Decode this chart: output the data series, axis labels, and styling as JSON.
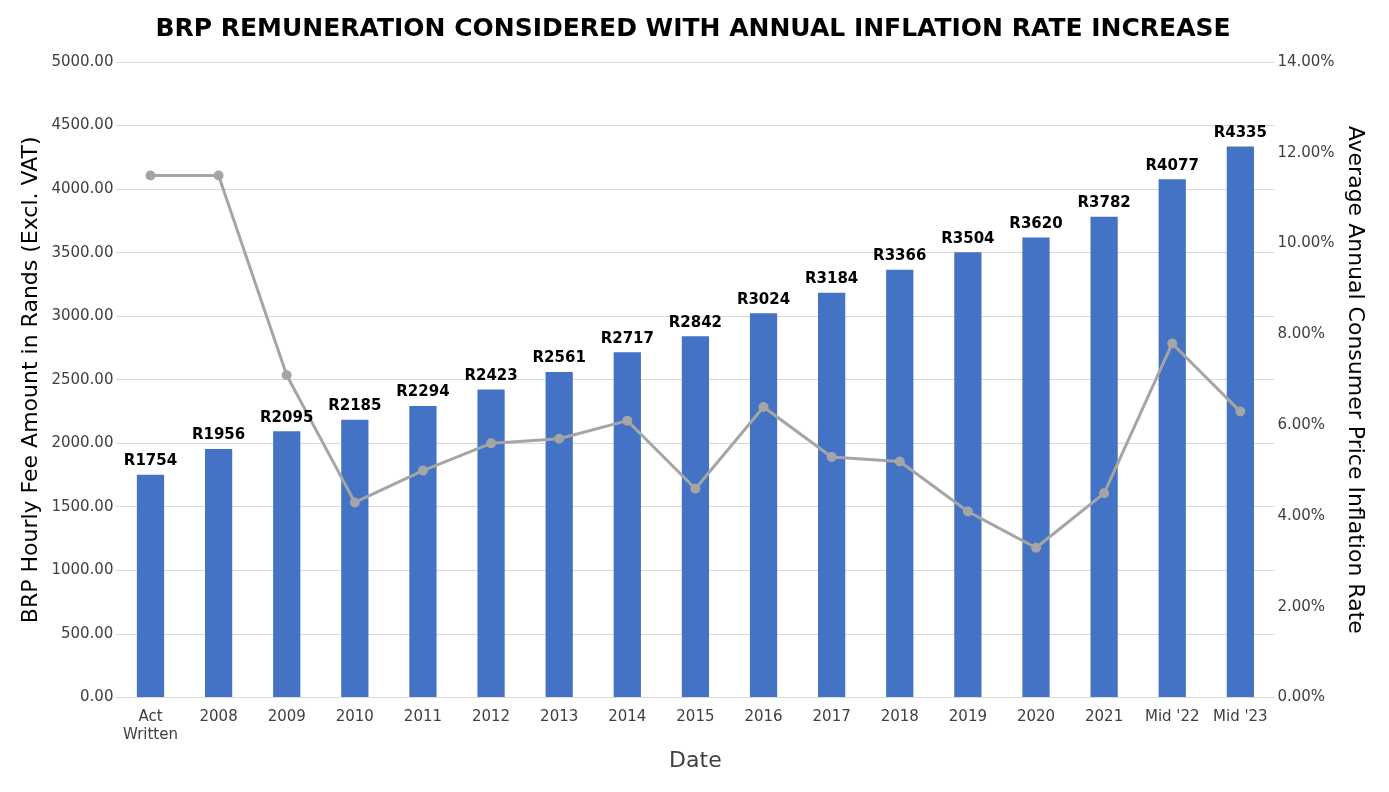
{
  "chart_data": {
    "type": "bar",
    "title": "BRP REMUNERATION CONSIDERED WITH ANNUAL INFLATION RATE INCREASE",
    "xlabel": "Date",
    "ylabel": "BRP Hourly Fee Amount in Rands (Excl. VAT)",
    "y2label": "Average Annual Consumer Price Inflation Rate",
    "categories": [
      "Act Written",
      "2008",
      "2009",
      "2010",
      "2011",
      "2012",
      "2013",
      "2014",
      "2015",
      "2016",
      "2017",
      "2018",
      "2019",
      "2020",
      "2021",
      "Mid '22",
      "Mid '23"
    ],
    "series": [
      {
        "color": "#4472c4",
        "values": [
          1754,
          1956,
          2095,
          2185,
          2294,
          2423,
          2561,
          2717,
          2842,
          3024,
          3184,
          3366,
          3504,
          3620,
          3782,
          4077,
          4335
        ],
        "value_labels": [
          "R1754",
          "R1956",
          "R2095",
          "R2185",
          "R2294",
          "R2423",
          "R2561",
          "R2717",
          "R2842",
          "R3024",
          "R3184",
          "R3366",
          "R3504",
          "R3620",
          "R3782",
          "R4077",
          "R4335"
        ]
      },
      {
        "type": "line",
        "axis": "y2",
        "color": "#a5a5a5",
        "marker": "circle",
        "values": [
          11.5,
          11.5,
          7.1,
          4.3,
          5.0,
          5.6,
          5.7,
          6.1,
          4.6,
          6.4,
          5.3,
          5.2,
          4.1,
          3.3,
          4.5,
          7.8,
          6.3
        ]
      }
    ],
    "ylim": [
      0,
      5000
    ],
    "yticks": [
      {
        "value": 0,
        "label": "0.00"
      },
      {
        "value": 500,
        "label": "500.00"
      },
      {
        "value": 1000,
        "label": "1000.00"
      },
      {
        "value": 1500,
        "label": "1500.00"
      },
      {
        "value": 2000,
        "label": "2000.00"
      },
      {
        "value": 2500,
        "label": "2500.00"
      },
      {
        "value": 3000,
        "label": "3000.00"
      },
      {
        "value": 3500,
        "label": "3500.00"
      },
      {
        "value": 4000,
        "label": "4000.00"
      },
      {
        "value": 4500,
        "label": "4500.00"
      },
      {
        "value": 5000,
        "label": "5000.00"
      }
    ],
    "y2lim": [
      0,
      14
    ],
    "y2ticks": [
      {
        "value": 0,
        "label": "0.00%"
      },
      {
        "value": 2,
        "label": "2.00%"
      },
      {
        "value": 4,
        "label": "4.00%"
      },
      {
        "value": 6,
        "label": "6.00%"
      },
      {
        "value": 8,
        "label": "8.00%"
      },
      {
        "value": 10,
        "label": "10.00%"
      },
      {
        "value": 12,
        "label": "12.00%"
      },
      {
        "value": 14,
        "label": "14.00%"
      }
    ],
    "grid": "y",
    "legend": false
  }
}
